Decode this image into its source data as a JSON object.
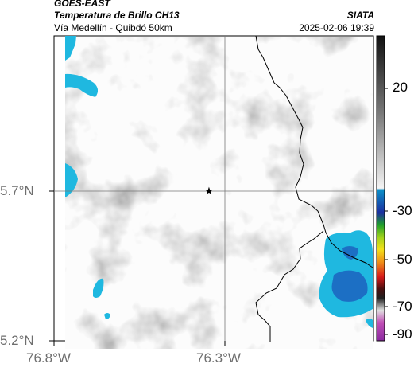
{
  "header": {
    "satellite": "GOES-EAST",
    "product": "Temperatura de Brillo CH13",
    "region": "Vía Medellín - Quibdó 50km",
    "organization": "SIATA",
    "timestamp": "2025-02-06 19:39"
  },
  "axes": {
    "lat_ticks": [
      "5.7°N",
      "5.2°N"
    ],
    "lon_ticks": [
      "76.8°W",
      "76.3°W"
    ]
  },
  "colorbar": {
    "ticks": [
      "20",
      "-30",
      "-50",
      "-70",
      "-90"
    ]
  },
  "colors": {
    "cloud_cold": "#1fb8e0",
    "cloud_core": "#1c6fc4",
    "background_gray": "#b4b4b4",
    "border_line": "#000000"
  }
}
